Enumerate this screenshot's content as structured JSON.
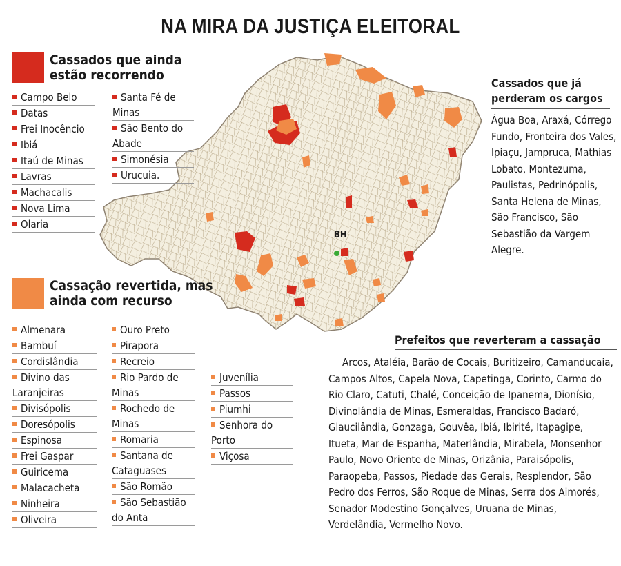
{
  "title": "NA MIRA DA JUSTIÇA ELEITORAL",
  "colors": {
    "red": "#d52b1e",
    "orange": "#f08a46",
    "map_fill": "#f4efe0"
  },
  "map": {
    "capital_label": "BH"
  },
  "legend_red": {
    "title": "Cassados que ainda\nestão recorrendo",
    "col1": [
      "Campo Belo",
      "Datas",
      "Frei Inocêncio",
      "Ibiá",
      "Itaú de Minas",
      "Lavras",
      "Machacalis",
      "Nova Lima",
      "Olaria"
    ],
    "col2": [
      "Santa Fé de\nMinas",
      "São Bento do\nAbade",
      "Simonésia",
      "Urucuia."
    ]
  },
  "legend_orange": {
    "title": "Cassação revertida, mas\nainda com recurso",
    "col1": [
      "Almenara",
      "Bambuí",
      "Cordislândia",
      "Divino das\nLaranjeiras",
      "Divisópolis",
      "Doresópolis",
      "Espinosa",
      "Frei Gaspar",
      "Guiricema",
      "Malacacheta",
      "Ninheira",
      "Oliveira"
    ],
    "col2": [
      "Ouro Preto",
      "Pirapora",
      "Recreio",
      "Rio Pardo de\nMinas",
      "Rochedo de\nMinas",
      "Romaria",
      "Santana de\nCataguases",
      "São Romão",
      "São Sebastião\ndo Anta"
    ],
    "col3": [
      "Juvenília",
      "Passos",
      "Piumhi",
      "Senhora do\nPorto",
      "Viçosa"
    ]
  },
  "lost_posts": {
    "title": "Cassados que já\nperderam os cargos",
    "text": "Água Boa, Araxá, Córrego Fundo, Fronteira dos Vales, Ipiaçu, Jampruca, Mathias Lobato, Montezuma, Paulistas, Pedrinópolis, Santa Helena de Minas, São Francisco, São Sebastião da Vargem Alegre."
  },
  "reverted": {
    "title": "Prefeitos que reverteram a cassação",
    "text": "Arcos, Ataléia, Barão de Cocais, Buritizeiro, Camanducaia, Campos Altos, Capela Nova, Capetinga, Corinto, Carmo do Rio Claro, Catuti, Chalé, Conceição de Ipanema, Dionísio, Divinolândia de Minas, Esmeraldas, Francisco Badaró, Glaucilândia, Gonzaga, Gouvêa, Ibiá, Ibirité, Itapagipe, Itueta, Mar de Espanha, Materlândia, Mirabela, Monsenhor Paulo, Novo Oriente de Minas, Orizânia, Paraisópolis, Paraopeba, Passos, Piedade das Gerais, Resplendor, São Pedro dos Ferros, São Roque de Minas, Serra dos Aimorés, Senador Modestino Gonçalves, Uruana de Minas, Verdelândia, Vermelho Novo."
  }
}
